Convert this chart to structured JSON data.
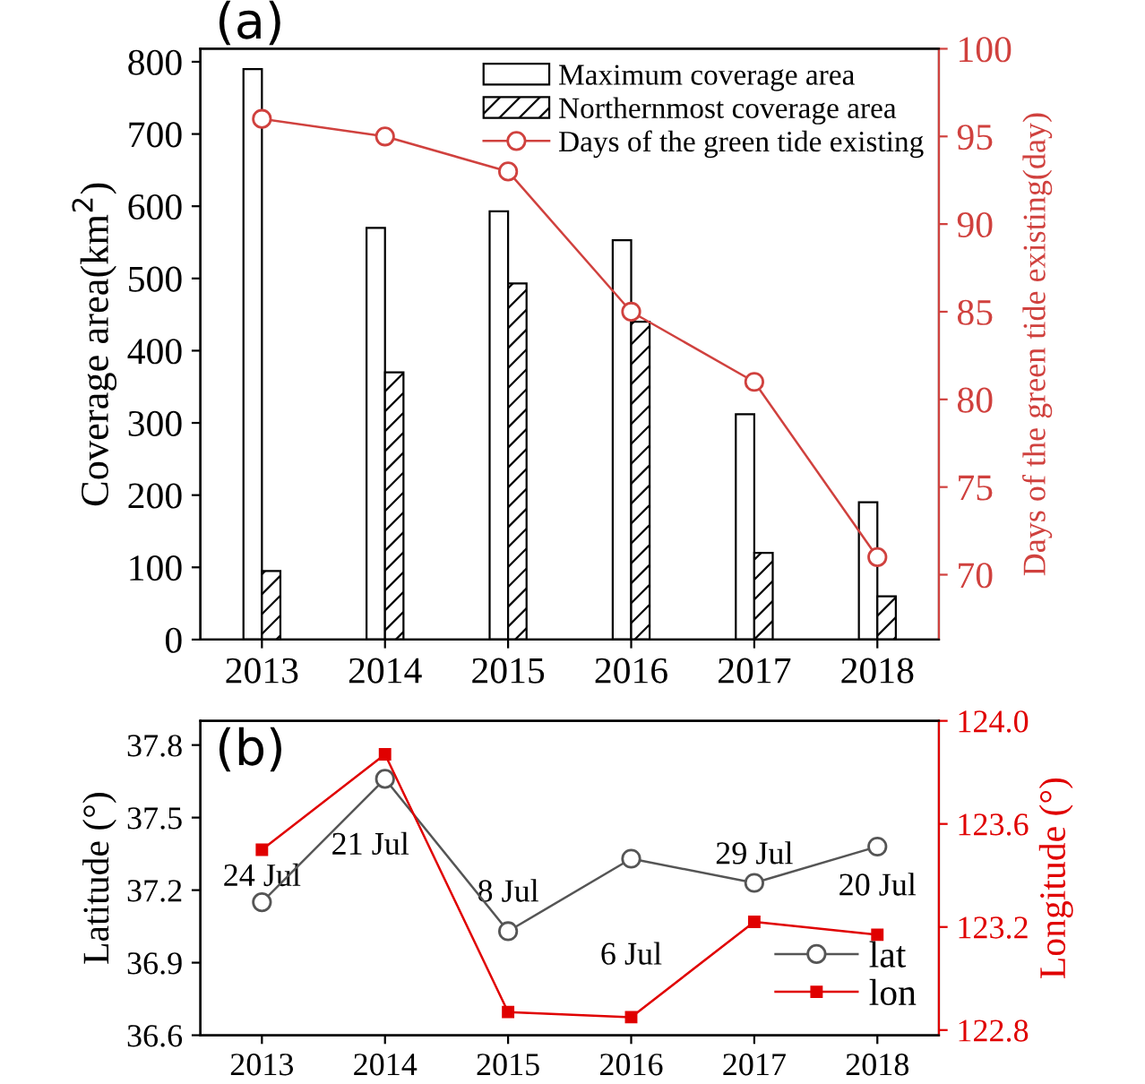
{
  "chart_data": [
    {
      "type": "bar",
      "title": "(a)",
      "categories": [
        "2013",
        "2014",
        "2015",
        "2016",
        "2017",
        "2018"
      ],
      "ylabel": "Coverage area(km$^{2}$)",
      "y2label": "Days of the green tide existing(day)",
      "ylim": [
        0,
        818
      ],
      "yticks": [
        0,
        100,
        200,
        300,
        400,
        500,
        600,
        700,
        800
      ],
      "y2lim": [
        66.3,
        100
      ],
      "y2ticks": [
        70,
        75,
        80,
        85,
        90,
        95,
        100
      ],
      "legend": "top right",
      "grid": false,
      "series": [
        {
          "name": "Maximum coverage area",
          "type": "bar",
          "color": "#ffffff",
          "values": [
            790,
            570,
            593,
            553,
            312,
            190
          ]
        },
        {
          "name": "Northernmost coverage area",
          "type": "bar",
          "color": "#000000",
          "values": [
            95,
            370,
            493,
            440,
            120,
            60
          ]
        },
        {
          "name": "Days of the green tide existing",
          "type": "line",
          "axis": "y2",
          "marker": "circle",
          "color": "#d0413e",
          "values": [
            96,
            95,
            93,
            85,
            81,
            71
          ]
        }
      ]
    },
    {
      "type": "line",
      "title": "(b)",
      "categories": [
        "2013",
        "2014",
        "2015",
        "2016",
        "2017",
        "2018"
      ],
      "ylabel": "Latitude (°)",
      "y2label": "Longitude (°)",
      "ylim": [
        36.6,
        37.9
      ],
      "yticks": [
        {
          "value": 36.6,
          "label": "36.6"
        },
        {
          "value": 36.9,
          "label": "36.9"
        },
        {
          "value": 37.2,
          "label": "37.2"
        },
        {
          "value": 37.5,
          "label": "37.5"
        },
        {
          "value": 37.8,
          "label": "37.8"
        }
      ],
      "y2lim": [
        122.78,
        124.0
      ],
      "y2ticks": [
        {
          "value": 122.8,
          "label": "122.8"
        },
        {
          "value": 123.2,
          "label": "123.2"
        },
        {
          "value": 123.6,
          "label": "123.6"
        },
        {
          "value": 124.0,
          "label": "124.0"
        }
      ],
      "legend": "bottom right",
      "grid": false,
      "series": [
        {
          "name": "lat",
          "marker": "circle",
          "color": "#555555",
          "values": [
            37.15,
            37.66,
            37.03,
            37.33,
            37.23,
            37.38
          ]
        },
        {
          "name": "lon",
          "marker": "square",
          "axis": "y2",
          "color": "#e00000",
          "values": [
            123.5,
            123.87,
            122.87,
            122.85,
            123.22,
            123.17
          ]
        }
      ],
      "annotations": [
        "24 Jul",
        "21 Jul",
        "8 Jul",
        "6 Jul",
        "29 Jul",
        "20 Jul"
      ]
    }
  ]
}
